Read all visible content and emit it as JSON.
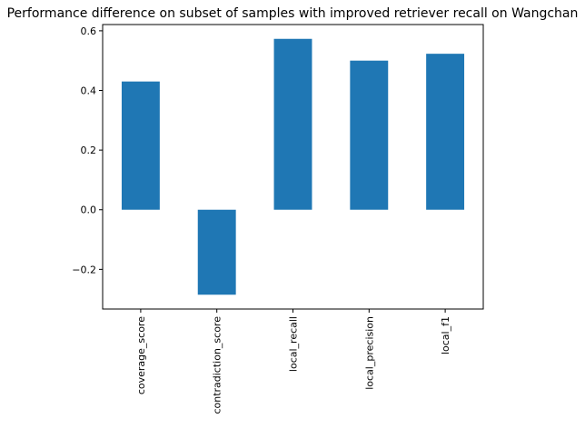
{
  "chart_data": {
    "type": "bar",
    "title": "Performance difference on subset of samples with improved retriever recall on Wangchan",
    "xlabel": "",
    "ylabel": "",
    "categories": [
      "coverage_score",
      "contradiction_score",
      "local_recall",
      "local_precision",
      "local_f1"
    ],
    "values": [
      0.43,
      -0.285,
      0.573,
      0.5,
      0.523
    ],
    "ylim": [
      -0.333,
      0.621
    ],
    "yticks": [
      -0.2,
      0.0,
      0.2,
      0.4,
      0.6
    ],
    "ytick_labels": [
      "−0.2",
      "0.0",
      "0.2",
      "0.4",
      "0.6"
    ],
    "grid": false,
    "bar_color": "#1f77b4"
  }
}
